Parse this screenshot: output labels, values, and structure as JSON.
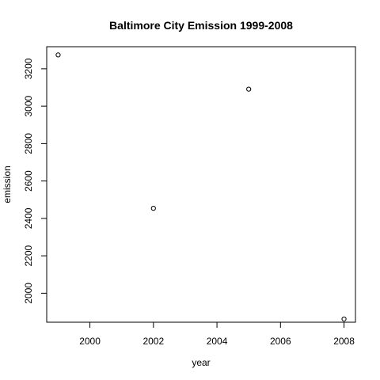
{
  "chart_data": {
    "type": "scatter",
    "title": "Baltimore City Emission 1999-2008",
    "xlabel": "year",
    "ylabel": "emission",
    "x": [
      1999,
      2002,
      2005,
      2008
    ],
    "y": [
      3274,
      2454,
      3091,
      1862
    ],
    "xlim": [
      1998.64,
      2008.36
    ],
    "ylim": [
      1845,
      3318
    ],
    "xticks": [
      2000,
      2002,
      2004,
      2006,
      2008
    ],
    "yticks": [
      2000,
      2200,
      2400,
      2600,
      2800,
      3000,
      3200
    ],
    "grid": false,
    "marker": "open-circle",
    "color": "#000000"
  }
}
